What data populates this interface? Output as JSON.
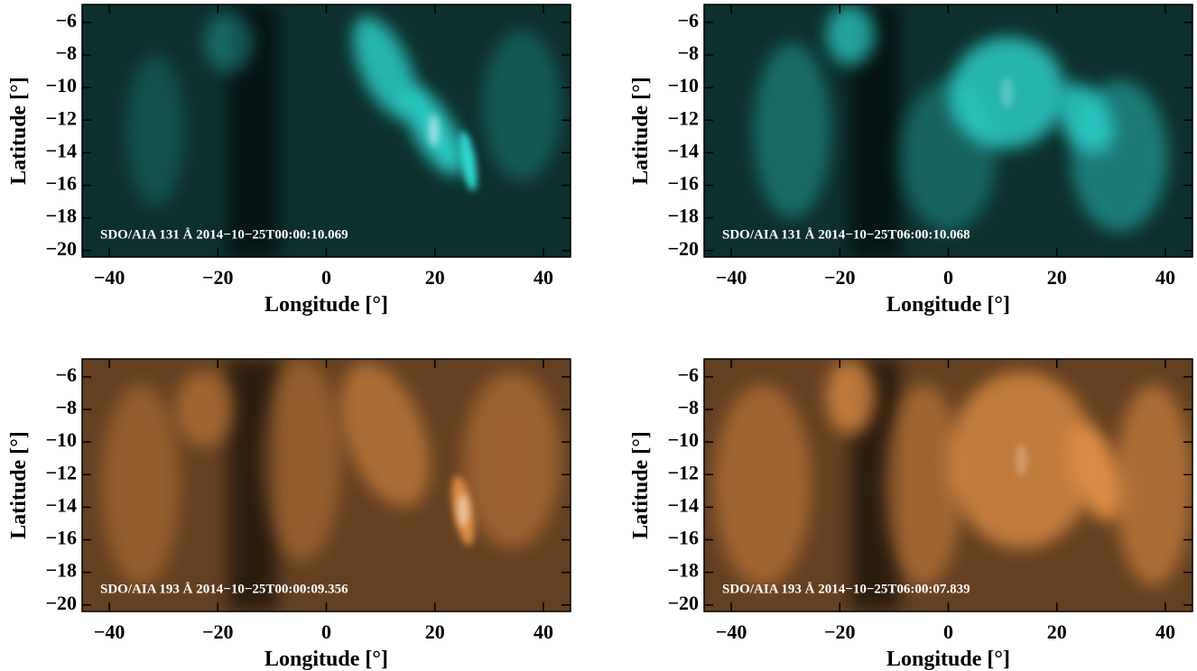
{
  "chart_data": [
    {
      "type": "image",
      "color": "#2fd6d0",
      "annotation": "SDO/AIA 131 Å 2014−10−25T00:00:10.069",
      "xlabel": "Longitude [°]",
      "ylabel": "Latitude [°]",
      "xlim": [
        -45,
        45
      ],
      "ylim": [
        -20.4,
        -4.9
      ],
      "xticks": [
        {
          "value": -40,
          "label": "−40"
        },
        {
          "value": -20,
          "label": "−20"
        },
        0,
        20,
        40
      ],
      "yticks": [
        {
          "value": -20,
          "label": "−20"
        },
        {
          "value": -18,
          "label": "−18"
        },
        {
          "value": -16,
          "label": "−16"
        },
        {
          "value": -14,
          "label": "−14"
        },
        {
          "value": -12,
          "label": "−12"
        },
        {
          "value": -10,
          "label": "−10"
        },
        {
          "value": -8,
          "label": "−8"
        },
        {
          "value": -6,
          "label": "−6"
        }
      ]
    },
    {
      "type": "image",
      "color": "#2fd6d0",
      "annotation": "SDO/AIA 131 Å 2014−10−25T06:00:10.068",
      "xlabel": "Longitude [°]",
      "ylabel": "Latitude [°]",
      "xlim": [
        -45,
        45
      ],
      "ylim": [
        -20.4,
        -4.9
      ],
      "xticks": [
        {
          "value": -40,
          "label": "−40"
        },
        {
          "value": -20,
          "label": "−20"
        },
        0,
        20,
        40
      ],
      "yticks": [
        {
          "value": -20,
          "label": "−20"
        },
        {
          "value": -18,
          "label": "−18"
        },
        {
          "value": -16,
          "label": "−16"
        },
        {
          "value": -14,
          "label": "−14"
        },
        {
          "value": -12,
          "label": "−12"
        },
        {
          "value": -10,
          "label": "−10"
        },
        {
          "value": -8,
          "label": "−8"
        },
        {
          "value": -6,
          "label": "−6"
        }
      ]
    },
    {
      "type": "image",
      "color": "#d98a45",
      "annotation": "SDO/AIA 193 Å 2014−10−25T00:00:09.356",
      "xlabel": "Longitude [°]",
      "ylabel": "Latitude [°]",
      "xlim": [
        -45,
        45
      ],
      "ylim": [
        -20.4,
        -4.9
      ],
      "xticks": [
        {
          "value": -40,
          "label": "−40"
        },
        {
          "value": -20,
          "label": "−20"
        },
        0,
        20,
        40
      ],
      "yticks": [
        {
          "value": -20,
          "label": "−20"
        },
        {
          "value": -18,
          "label": "−18"
        },
        {
          "value": -16,
          "label": "−16"
        },
        {
          "value": -14,
          "label": "−14"
        },
        {
          "value": -12,
          "label": "−12"
        },
        {
          "value": -10,
          "label": "−10"
        },
        {
          "value": -8,
          "label": "−8"
        },
        {
          "value": -6,
          "label": "−6"
        }
      ]
    },
    {
      "type": "image",
      "color": "#d98a45",
      "annotation": "SDO/AIA 193 Å 2014−10−25T06:00:07.839",
      "xlabel": "Longitude [°]",
      "ylabel": "Latitude [°]",
      "xlim": [
        -45,
        45
      ],
      "ylim": [
        -20.4,
        -4.9
      ],
      "xticks": [
        {
          "value": -40,
          "label": "−40"
        },
        {
          "value": -20,
          "label": "−20"
        },
        0,
        20,
        40
      ],
      "yticks": [
        {
          "value": -20,
          "label": "−20"
        },
        {
          "value": -18,
          "label": "−18"
        },
        {
          "value": -16,
          "label": "−16"
        },
        {
          "value": -14,
          "label": "−14"
        },
        {
          "value": -12,
          "label": "−12"
        },
        {
          "value": -10,
          "label": "−10"
        },
        {
          "value": -8,
          "label": "−8"
        },
        {
          "value": -6,
          "label": "−6"
        }
      ]
    }
  ]
}
